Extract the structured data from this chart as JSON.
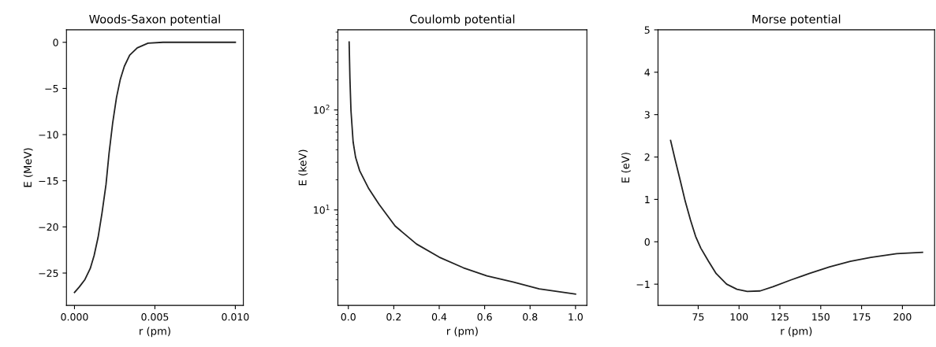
{
  "chart_data": [
    {
      "type": "line",
      "title": "Woods-Saxon potential",
      "xlabel": "r (pm)",
      "ylabel": "E (MeV)",
      "series": [
        {
          "color": "#222222",
          "x": [
            0.0,
            0.0003,
            0.00065,
            0.00098,
            0.00122,
            0.00147,
            0.00171,
            0.00196,
            0.00215,
            0.00237,
            0.00261,
            0.00285,
            0.0031,
            0.00343,
            0.0039,
            0.00457,
            0.0055,
            0.0069,
            0.01
          ],
          "values": [
            -27.1,
            -26.5,
            -25.7,
            -24.5,
            -23.1,
            -21.1,
            -18.5,
            -15.4,
            -12.0,
            -8.8,
            -6.0,
            -4.0,
            -2.6,
            -1.4,
            -0.6,
            -0.1,
            0,
            0,
            0
          ]
        }
      ],
      "xlim": [
        -0.0005,
        0.0105
      ],
      "xticks": [
        {
          "value": 0,
          "label": "0.000"
        },
        {
          "value": 0.005,
          "label": "0.005"
        },
        {
          "value": 0.01,
          "label": "0.010"
        }
      ],
      "ylim": [
        -28.5,
        1.35
      ],
      "yticks": [
        {
          "value": -25,
          "label": "−25"
        },
        {
          "value": -20,
          "label": "−20"
        },
        {
          "value": -15,
          "label": "−15"
        },
        {
          "value": -10,
          "label": "−10"
        },
        {
          "value": -5,
          "label": "−5"
        },
        0
      ],
      "grid": false
    },
    {
      "type": "line",
      "title": "Coulomb potential",
      "xlabel": "r (pm)",
      "ylabel": "E (keV)",
      "log": "y",
      "series": [
        {
          "color": "#222222",
          "x": [
            0.0035,
            0.007,
            0.0115,
            0.021,
            0.032,
            0.05,
            0.09,
            0.136,
            0.206,
            0.3,
            0.4,
            0.506,
            0.61,
            0.725,
            0.84,
            1.0
          ],
          "values": [
            479,
            205,
            99,
            48,
            33.5,
            24.6,
            16.3,
            11.3,
            6.9,
            4.56,
            3.37,
            2.64,
            2.19,
            1.9,
            1.62,
            1.44
          ]
        }
      ],
      "xlim": [
        -0.046,
        1.05
      ],
      "xticks": [
        {
          "value": 0,
          "label": "0.0"
        },
        0.2,
        0.4,
        0.6,
        0.8,
        {
          "value": 1,
          "label": "1.0"
        }
      ],
      "ylim": [
        1.11,
        633
      ],
      "yticks": [
        {
          "value": 10,
          "label": "10$^{1}$"
        },
        {
          "value": 100,
          "label": "10$^{2}$"
        }
      ],
      "grid": false
    },
    {
      "type": "line",
      "title": "Morse potential",
      "xlabel": "r (pm)",
      "ylabel": "E (eV)",
      "series": [
        {
          "color": "#222222",
          "x": [
            58.1,
            60.8,
            64.0,
            67.1,
            70.3,
            73.4,
            76.6,
            81.3,
            86.0,
            92.4,
            98.7,
            105.0,
            112.9,
            120.8,
            131.8,
            142.9,
            155.5,
            168.1,
            180.7,
            196.5,
            212.3
          ],
          "values": [
            2.39,
            1.95,
            1.45,
            0.95,
            0.51,
            0.13,
            -0.15,
            -0.46,
            -0.75,
            -1.0,
            -1.12,
            -1.17,
            -1.16,
            -1.06,
            -0.9,
            -0.75,
            -0.59,
            -0.46,
            -0.37,
            -0.28,
            -0.25
          ]
        }
      ],
      "xlim": [
        50.4,
        219.7
      ],
      "xticks": [
        75,
        100,
        125,
        150,
        175,
        200
      ],
      "ylim": [
        -1.5,
        5
      ],
      "yticks": [
        {
          "value": -1,
          "label": "−1"
        },
        0,
        1,
        2,
        3,
        4,
        5
      ],
      "grid": false
    }
  ]
}
